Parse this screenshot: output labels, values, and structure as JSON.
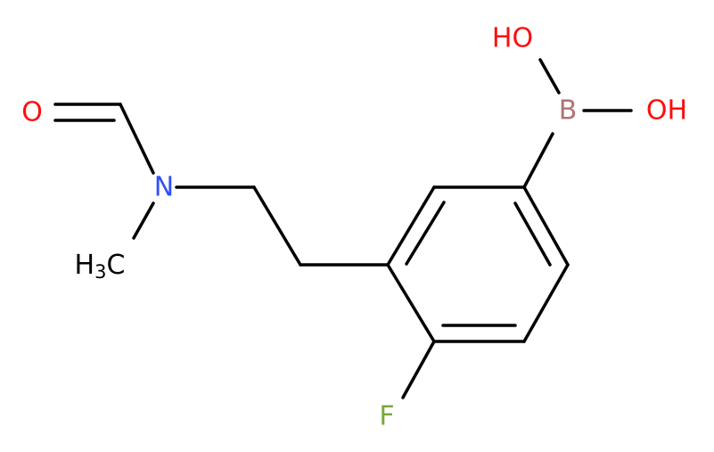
{
  "atoms": [
    {
      "label": "O"
    },
    {
      "label": "N"
    },
    {
      "parts": [
        "H",
        "3",
        "C"
      ]
    },
    {
      "label": "F"
    },
    {
      "label": "B"
    },
    {
      "label": "HO"
    },
    {
      "label": "OH"
    }
  ]
}
